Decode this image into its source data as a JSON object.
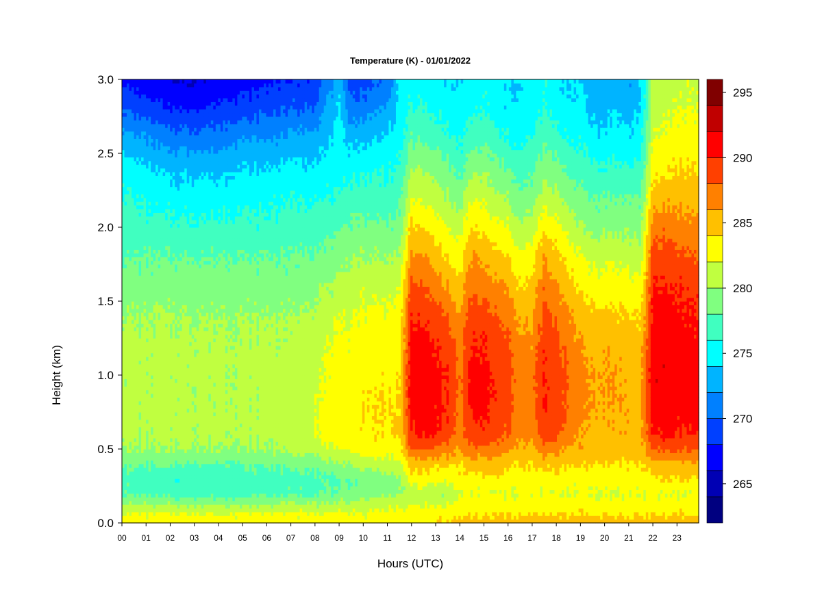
{
  "chart_data": {
    "type": "heatmap",
    "title": "Temperature (K) - 01/01/2022",
    "xlabel": "Hours (UTC)",
    "ylabel": "Height (km)",
    "x": {
      "unit": "hours UTC",
      "range": [
        0,
        23.9
      ],
      "ticks": [
        0,
        1,
        2,
        3,
        4,
        5,
        6,
        7,
        8,
        9,
        10,
        11,
        12,
        13,
        14,
        15,
        16,
        17,
        18,
        19,
        20,
        21,
        22,
        23
      ],
      "tick_labels": [
        "00",
        "01",
        "02",
        "03",
        "04",
        "05",
        "06",
        "07",
        "08",
        "09",
        "10",
        "11",
        "12",
        "13",
        "14",
        "15",
        "16",
        "17",
        "18",
        "19",
        "20",
        "21",
        "22",
        "23"
      ]
    },
    "y": {
      "unit": "km",
      "range": [
        0,
        3.0
      ],
      "ticks": [
        0.0,
        0.5,
        1.0,
        1.5,
        2.0,
        2.5,
        3.0
      ],
      "tick_labels": [
        "0.0",
        "0.5",
        "1.0",
        "1.5",
        "2.0",
        "2.5",
        "3.0"
      ]
    },
    "grid": false,
    "colorbar": {
      "placement": "right",
      "levels": [
        262,
        264,
        266,
        268,
        270,
        272,
        274,
        276,
        278,
        280,
        282,
        284,
        286,
        288,
        290,
        292,
        294,
        296
      ],
      "colors": [
        "#000080",
        "#0000b4",
        "#0000ff",
        "#0040ff",
        "#0080ff",
        "#00b4ff",
        "#00ffff",
        "#40ffc0",
        "#80ff80",
        "#c0ff40",
        "#ffff00",
        "#ffc000",
        "#ff8000",
        "#ff4000",
        "#ff0000",
        "#c00000",
        "#800000"
      ],
      "tick_values": [
        265,
        270,
        275,
        280,
        285,
        290,
        295
      ],
      "tick_labels": [
        "265",
        "270",
        "275",
        "280",
        "285",
        "290",
        "295"
      ]
    },
    "z_unit": "K",
    "heights_km": [
      0.0,
      0.05,
      0.12,
      0.2,
      0.3,
      0.4,
      0.5,
      0.6,
      0.8,
      1.0,
      1.2,
      1.4,
      1.6,
      1.8,
      2.0,
      2.2,
      2.4,
      2.6,
      2.8,
      3.0
    ],
    "times_h": [
      0.0,
      1.0,
      2.0,
      3.0,
      4.0,
      5.0,
      6.0,
      7.0,
      8.0,
      9.0,
      9.5,
      10.0,
      11.0,
      11.5,
      12.0,
      12.5,
      13.0,
      13.5,
      14.0,
      14.5,
      15.0,
      15.5,
      16.0,
      16.5,
      17.0,
      17.5,
      18.0,
      18.5,
      19.0,
      19.5,
      20.0,
      20.5,
      21.0,
      21.5,
      22.0,
      22.5,
      23.0,
      23.9
    ],
    "values_K": [
      [
        283,
        282.5,
        280.5,
        278,
        277,
        278.5,
        280,
        280.5,
        280.5,
        280.5,
        281,
        280,
        279,
        278,
        277,
        276.5,
        275.5,
        273,
        270,
        267.5
      ],
      [
        283,
        282.5,
        280,
        277.5,
        277,
        278,
        280,
        280.5,
        280.5,
        280.5,
        280.5,
        280,
        279,
        278,
        276.5,
        275.5,
        274,
        272,
        269,
        266.5
      ],
      [
        283,
        282.5,
        280,
        277,
        276.5,
        278,
        280,
        280.5,
        280.5,
        280.5,
        280.5,
        280,
        279,
        278,
        276.5,
        275,
        273.5,
        271,
        268,
        266
      ],
      [
        283,
        282.5,
        280,
        277,
        276.5,
        278,
        280,
        280.5,
        280.5,
        280.5,
        280.5,
        280,
        279,
        278,
        276.5,
        275,
        273.5,
        271,
        268,
        266
      ],
      [
        283,
        282.5,
        280,
        277,
        276.5,
        278,
        280,
        280.5,
        280.5,
        280.5,
        280.5,
        280,
        279,
        278,
        276.5,
        275,
        273.5,
        271,
        268.5,
        266.5
      ],
      [
        283,
        282.5,
        280,
        277,
        277,
        278,
        280,
        280.5,
        280.5,
        280.5,
        280.5,
        280,
        279,
        278,
        276.5,
        275.5,
        274,
        272,
        269,
        267
      ],
      [
        283,
        282.5,
        280,
        277.5,
        277,
        278.5,
        280,
        280.5,
        280.5,
        280.5,
        280.5,
        280,
        279,
        278,
        276.5,
        275.5,
        274,
        272,
        269.5,
        267.5
      ],
      [
        283,
        282.5,
        280.5,
        277.5,
        277,
        278.5,
        280.5,
        281,
        281,
        281,
        280.5,
        280,
        279,
        278,
        277,
        276,
        274.5,
        272.5,
        270,
        268
      ],
      [
        283,
        282.5,
        280.5,
        278,
        277.5,
        279,
        281,
        282,
        282,
        281.5,
        281,
        280.5,
        279.5,
        278.5,
        277,
        276,
        274.5,
        273,
        270.5,
        268.5
      ],
      [
        283,
        282.5,
        280.5,
        278,
        277.5,
        279.5,
        282,
        283,
        283,
        283,
        282.5,
        281.5,
        280.5,
        279,
        277.5,
        276,
        275,
        274.5,
        274,
        273
      ],
      [
        283,
        282.5,
        281,
        278.5,
        278,
        280,
        282.5,
        283,
        283,
        283,
        282.5,
        282,
        281,
        280,
        278.5,
        277,
        275.5,
        273.5,
        271,
        269
      ],
      [
        283,
        282.5,
        281,
        279,
        278.5,
        281,
        283,
        283.5,
        284,
        283.5,
        283,
        282.5,
        281.5,
        280,
        278.5,
        277,
        275.5,
        273.5,
        271,
        269
      ],
      [
        283,
        283,
        281.5,
        279.5,
        279,
        281.5,
        283,
        284,
        284,
        283.5,
        283,
        282.5,
        281.5,
        280,
        278.5,
        277,
        276,
        274.5,
        272.5,
        270.5
      ],
      [
        283,
        283,
        281.5,
        279.5,
        279,
        281.5,
        283,
        284,
        284,
        283.5,
        283,
        282.5,
        281.5,
        280,
        278.5,
        277.5,
        276,
        275,
        274.5,
        274
      ],
      [
        283,
        283,
        282,
        281,
        283,
        285,
        288,
        290,
        291,
        291.5,
        291,
        290,
        288.5,
        286.5,
        284.5,
        282,
        280,
        278,
        276.5,
        275
      ],
      [
        283,
        283,
        282,
        281,
        283,
        285,
        288,
        290,
        291,
        291,
        290.5,
        289.5,
        288,
        286,
        284,
        281.5,
        279.5,
        277.5,
        276,
        275
      ],
      [
        284,
        283.5,
        282,
        280.5,
        282.5,
        284.5,
        288,
        290,
        290.5,
        290.5,
        290,
        289,
        287,
        285,
        283,
        281,
        279.5,
        277.5,
        275.5,
        274.5
      ],
      [
        284,
        283.5,
        282,
        280.5,
        282.5,
        284.5,
        287,
        289,
        290,
        290,
        289,
        288,
        286,
        284,
        282,
        280,
        278.5,
        276.5,
        275,
        274
      ],
      [
        285,
        284,
        283,
        282,
        283,
        284,
        286,
        287,
        287.5,
        287.5,
        287,
        286,
        284.5,
        283,
        281,
        279,
        277,
        275.5,
        274.5,
        274
      ],
      [
        285,
        284,
        283,
        282,
        283.5,
        285,
        287.5,
        289.5,
        290.5,
        291,
        290,
        289,
        287.5,
        286,
        284,
        282,
        279.5,
        277,
        275.5,
        275
      ],
      [
        285,
        284,
        283,
        282,
        283.5,
        285,
        287.5,
        289.5,
        290.5,
        290.5,
        290,
        289,
        287,
        285.5,
        283.5,
        281.5,
        279.5,
        277.5,
        276,
        275.5
      ],
      [
        285,
        284,
        283,
        282,
        283.5,
        285,
        287,
        288.5,
        289.5,
        289.5,
        289,
        288,
        286.5,
        284.5,
        282.5,
        280.5,
        278.5,
        276.5,
        275,
        274.5
      ],
      [
        285,
        284,
        283,
        282,
        283,
        284.5,
        286.5,
        288,
        289,
        289,
        288.5,
        287.5,
        286,
        284,
        282,
        280,
        278,
        276,
        274.5,
        274
      ],
      [
        285,
        284,
        283,
        282,
        283,
        284,
        285.5,
        286.5,
        287,
        287,
        286.5,
        285.5,
        284,
        282.5,
        280.5,
        278.5,
        277,
        275.5,
        274.5,
        274
      ],
      [
        285,
        284,
        283,
        282,
        283,
        284,
        285.5,
        286.5,
        287,
        287,
        286.5,
        285.5,
        284.5,
        283,
        281,
        279,
        277.5,
        276,
        275,
        274.5
      ],
      [
        285,
        284,
        283,
        282,
        283,
        284.5,
        287,
        289,
        290,
        290,
        289.5,
        288.5,
        287.5,
        286,
        283.5,
        281,
        279,
        277.5,
        276,
        275.5
      ],
      [
        285,
        284,
        283,
        282,
        283,
        284.5,
        286.5,
        288.5,
        289,
        289,
        288.5,
        287.5,
        286,
        284.5,
        282.5,
        280.5,
        278.5,
        276.5,
        275,
        274.5
      ],
      [
        285,
        284,
        283,
        282,
        283,
        284.5,
        286,
        287.5,
        288,
        288,
        287.5,
        286.5,
        285,
        283.5,
        281.5,
        279.5,
        278,
        276,
        274.5,
        274
      ],
      [
        285,
        284,
        283,
        282,
        283,
        284,
        285.5,
        286,
        286.5,
        286.5,
        286,
        285,
        283.5,
        282,
        280,
        278.5,
        277,
        275.5,
        274.5,
        274
      ],
      [
        285,
        284,
        283,
        282,
        283,
        284,
        285,
        285.5,
        286,
        286,
        285.5,
        284.5,
        283,
        281.5,
        279.5,
        278,
        276.5,
        275,
        273.5,
        273
      ],
      [
        285,
        284,
        283,
        282,
        283,
        284,
        285,
        285.5,
        286,
        286,
        285.5,
        284.5,
        283,
        281.5,
        279.5,
        278,
        276,
        274.5,
        273,
        272
      ],
      [
        285,
        284,
        283,
        282,
        283,
        284,
        285,
        285.5,
        286,
        286,
        285.5,
        284.5,
        283,
        281.5,
        279.5,
        278,
        276.5,
        275,
        274,
        273
      ],
      [
        285,
        284,
        283,
        282,
        283,
        284,
        285,
        285.5,
        285.5,
        285.5,
        285,
        284,
        282.5,
        281,
        279.5,
        278,
        276,
        274.5,
        273,
        272
      ],
      [
        285,
        284,
        283,
        282,
        283,
        284,
        285,
        285.5,
        285.5,
        285.5,
        285,
        284,
        282.5,
        281,
        279.5,
        278,
        276.5,
        275,
        274,
        274
      ],
      [
        285,
        284,
        283,
        282,
        283.5,
        285,
        288,
        290,
        291,
        291.5,
        291,
        290.5,
        290,
        288.5,
        287,
        285,
        283,
        282,
        281,
        280.5
      ],
      [
        285,
        284,
        283,
        282,
        284,
        285.5,
        288.5,
        290.5,
        291,
        291.5,
        291.5,
        291,
        290,
        289,
        287.5,
        285.5,
        283.5,
        282.5,
        281.5,
        281
      ],
      [
        285,
        284,
        283,
        282,
        284,
        285.5,
        288.5,
        290,
        291,
        291,
        291,
        290.5,
        290,
        288.5,
        287,
        285.5,
        284,
        283,
        282,
        281.5
      ],
      [
        285,
        284,
        283,
        282,
        284,
        285.5,
        288,
        290,
        291,
        291,
        290.5,
        290,
        289.5,
        288,
        286.5,
        285,
        284,
        283,
        282,
        281.5
      ]
    ]
  }
}
